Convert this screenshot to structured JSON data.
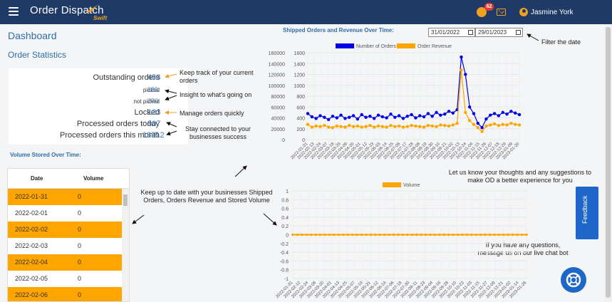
{
  "header": {
    "app_name": "Order Dispatch",
    "app_sub": "Swift",
    "notification_count": "62",
    "user_name": "Jasmine York",
    "colors": {
      "bar": "#1f3a66",
      "accent": "#f0a020"
    }
  },
  "page": {
    "title": "Dashboard",
    "stats_title": "Order Statistics"
  },
  "stats": [
    {
      "label": "Outstanding orders",
      "value": "453"
    },
    {
      "label": "picked",
      "value": "183"
    },
    {
      "label": "not picked",
      "value": "270"
    },
    {
      "label": "Locked",
      "value": "123"
    },
    {
      "label": "Processed orders today",
      "value": "907"
    },
    {
      "label": "Processed orders this month",
      "value": "13912"
    }
  ],
  "annotations": {
    "track": "Keep track of your current orders",
    "insight": "Insight to what's going on",
    "manage": "Manage orders quickly",
    "connected": "Stay connected to your businesses success",
    "filter": "Filter the date",
    "feedback_prompt": "Let us know your thoughts and any suggestions to make OD a better experience for you",
    "up_to_date": "Keep up to date with your businesses Shipped Orders, Orders Revenue and Stored Volume",
    "questions": "If you have any questions, message us on our live chat bot"
  },
  "volume_table": {
    "title": "Volume Stored Over Time:",
    "col_date": "Date",
    "col_volume": "Volume",
    "rows": [
      {
        "date": "2022-01-31",
        "volume": "0"
      },
      {
        "date": "2022-02-01",
        "volume": "0"
      },
      {
        "date": "2022-02-02",
        "volume": "0"
      },
      {
        "date": "2022-02-03",
        "volume": "0"
      },
      {
        "date": "2022-02-04",
        "volume": "0"
      },
      {
        "date": "2022-02-05",
        "volume": "0"
      },
      {
        "date": "2022-02-06",
        "volume": "0"
      }
    ]
  },
  "date_filter": {
    "from": "31/01/2022",
    "to": "29/01/2023"
  },
  "feedback_label": "Feedback",
  "chart_data": [
    {
      "type": "line",
      "title": "Shipped Orders and Revenue Over Time:",
      "legend_position": "top",
      "series": [
        {
          "name": "Number of Orders",
          "color": "#0000e6",
          "axis": "left",
          "values": [
            48000,
            42000,
            39000,
            44000,
            41000,
            37000,
            43000,
            40000,
            45000,
            39000,
            41000,
            44000,
            38000,
            46000,
            41000,
            43000,
            39000,
            45000,
            42000,
            40000,
            47000,
            41000,
            44000,
            39000,
            43000,
            46000,
            40000,
            44000,
            42000,
            48000,
            43000,
            50000,
            45000,
            47000,
            52000,
            49000,
            55000,
            152000,
            120000,
            60000,
            48000,
            30000,
            22000,
            38000,
            45000,
            48000,
            44000,
            50000,
            47000,
            52000,
            49000,
            46000
          ]
        },
        {
          "name": "Order Revenue",
          "color": "#ffa500",
          "axis": "right",
          "values": [
            280,
            230,
            250,
            240,
            260,
            230,
            220,
            250,
            240,
            230,
            260,
            240,
            250,
            230,
            240,
            260,
            230,
            250,
            240,
            230,
            260,
            240,
            250,
            230,
            240,
            260,
            250,
            240,
            230,
            260,
            250,
            240,
            270,
            260,
            250,
            270,
            300,
            1280,
            500,
            350,
            280,
            220,
            150,
            250,
            270,
            290,
            260,
            280,
            270,
            300,
            280,
            270
          ]
        }
      ],
      "x": [
        "2022-01-31",
        "2022-02-07",
        "2022-02-14",
        "2022-02-21",
        "2022-02-28",
        "2022-03-07",
        "2022-03-14",
        "2022-03-21",
        "2022-03-28",
        "2022-04-04",
        "2022-04-11",
        "2022-04-18",
        "2022-04-25",
        "2022-05-02",
        "2022-05-09",
        "2022-05-16",
        "2022-05-23",
        "2022-05-30",
        "2022-06-06",
        "2022-06-13",
        "2022-06-20",
        "2022-06-27",
        "2022-07-04",
        "2022-07-11",
        "2022-07-18",
        "2022-07-25",
        "2022-08-01",
        "2022-08-08",
        "2022-08-15",
        "2022-08-22",
        "2022-08-29",
        "2022-09-05",
        "2022-09-12",
        "2022-09-19",
        "2022-09-26",
        "2022-10-03",
        "2022-10-10",
        "2022-10-17",
        "2022-10-24",
        "2022-10-31",
        "2022-11-07",
        "2022-11-14",
        "2022-11-21",
        "2022-11-28",
        "2022-12-05",
        "2022-12-12",
        "2022-12-19",
        "2022-12-26",
        "2023-01-02",
        "2023-01-09",
        "2023-01-16",
        "2023-01-23"
      ],
      "x_ticks": [
        "2022-01-31",
        "2022-02-13",
        "2022-02-24",
        "2022-03-07",
        "2022-03-18",
        "2022-03-29",
        "2022-04-09",
        "2022-04-20",
        "2022-05-01",
        "2022-05-12",
        "2022-05-23",
        "2022-06-03",
        "2022-06-14",
        "2022-06-25",
        "2022-07-06",
        "2022-07-17",
        "2022-07-28",
        "2022-08-08",
        "2022-08-19",
        "2022-08-30",
        "2022-09-10",
        "2022-09-21",
        "2022-10-02",
        "2022-10-13",
        "2022-10-24",
        "2022-11-04",
        "2022-11-15",
        "2022-11-26",
        "2022-12-07",
        "2022-12-18",
        "2022-12-29",
        "2023-01-09",
        "2023-01-20"
      ],
      "y_left_ticks": [
        0,
        20000,
        40000,
        60000,
        80000,
        100000,
        120000,
        140000,
        160000
      ],
      "y_right_ticks": [
        0,
        200,
        400,
        600,
        800,
        1000,
        1200,
        1400,
        1600
      ],
      "ylim_left": [
        0,
        160000
      ],
      "ylim_right": [
        0,
        1600
      ],
      "grid": true
    },
    {
      "type": "line",
      "legend_position": "top",
      "series": [
        {
          "name": "Volume",
          "color": "#ffa500",
          "values": [
            0,
            0,
            0,
            0,
            0,
            0,
            0,
            0,
            0,
            0,
            0,
            0,
            0,
            0,
            0,
            0,
            0,
            0,
            0,
            0,
            0,
            0,
            0,
            0,
            0,
            0,
            0,
            0,
            0,
            0,
            0,
            0,
            0,
            0,
            0,
            0,
            0,
            0,
            0,
            0,
            0,
            0,
            0,
            0,
            0,
            0,
            0,
            0,
            0,
            0,
            0,
            0
          ]
        }
      ],
      "x_ticks": [
        "2022-01-31",
        "2022-02-12",
        "2022-02-24",
        "2022-03-08",
        "2022-03-20",
        "2022-04-01",
        "2022-04-13",
        "2022-04-25",
        "2022-05-07",
        "2022-05-19",
        "2022-05-31",
        "2022-06-12",
        "2022-06-24",
        "2022-07-06",
        "2022-07-18",
        "2022-07-30",
        "2022-08-11",
        "2022-08-23",
        "2022-09-04",
        "2022-09-16",
        "2022-09-28",
        "2022-10-10",
        "2022-10-22",
        "2022-11-03",
        "2022-11-15",
        "2022-11-27",
        "2022-12-09",
        "2022-12-21",
        "2023-01-02",
        "2023-01-14",
        "2023-01-26"
      ],
      "y_ticks": [
        -1.0,
        -0.8,
        -0.6,
        -0.4,
        -0.2,
        0,
        0.2,
        0.4,
        0.6,
        0.8,
        1.0
      ],
      "ylim": [
        -1,
        1
      ],
      "grid": true
    }
  ]
}
